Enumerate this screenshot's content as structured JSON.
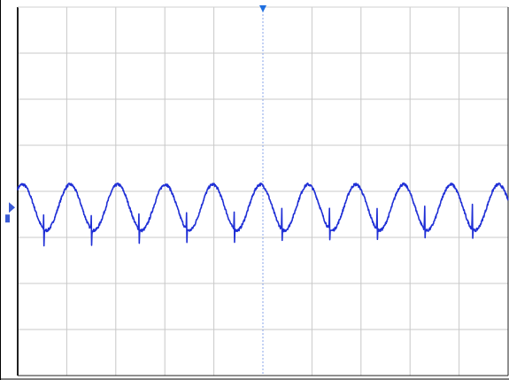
{
  "chart_data": {
    "type": "line",
    "title": "",
    "xlabel": "",
    "ylabel": "",
    "grid": true,
    "divisions": {
      "x": 10,
      "y": 8
    },
    "xlim": [
      0,
      10
    ],
    "ylim": [
      -4,
      4
    ],
    "series": [
      {
        "color": "#1f2fd6",
        "cycles": 10.3,
        "phase_at_left_edge": 0.15,
        "amplitude_div": 0.5,
        "offset_div": -0.35,
        "spike_phase": 0.7,
        "spike_up_div": 0.55,
        "spike_down_div": 0.4,
        "noise_div": 0.03
      }
    ],
    "markers": {
      "trigger_color": "#1f6fe0",
      "channel_marker_color": "#3b5bd6"
    }
  }
}
